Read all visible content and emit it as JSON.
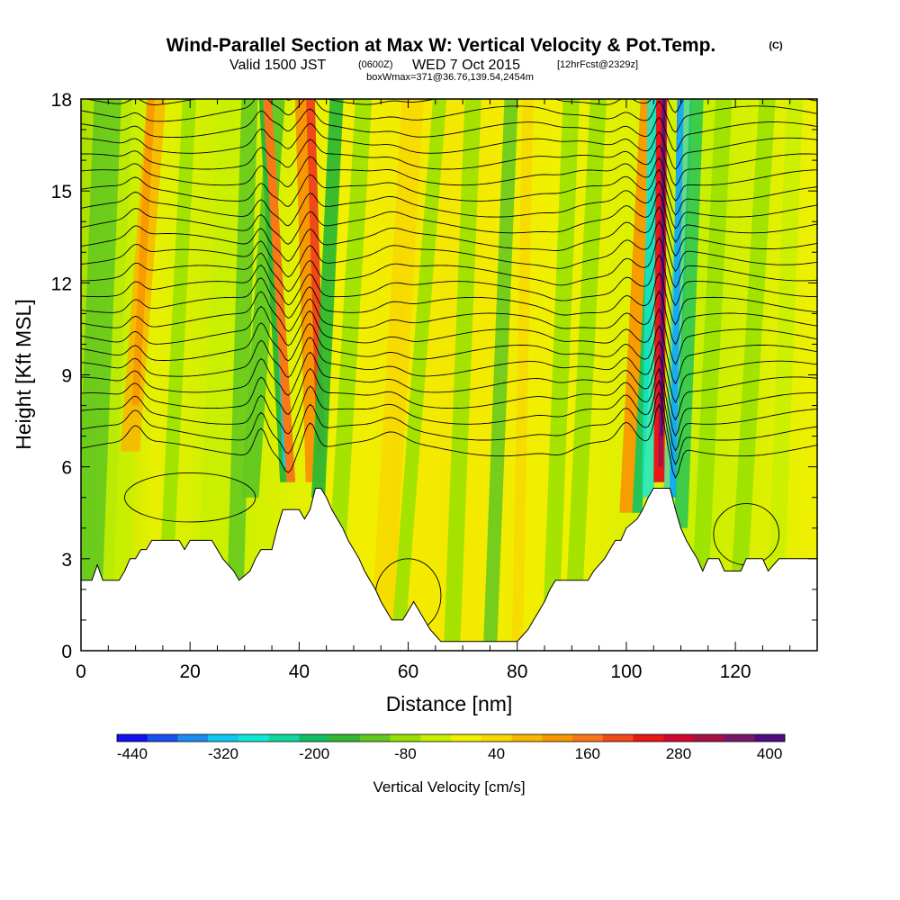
{
  "header": {
    "title": "Wind-Parallel Section at Max W: Vertical Velocity & Pot.Temp.",
    "copyright": "(C)",
    "valid_prefix": "Valid 1500 JST",
    "valid_utc": "(0600Z)",
    "valid_date": "WED 7 Oct 2015",
    "forecast": "[12hrFcst@2329z]",
    "boxwmax": "boxWmax=371@36.76,139.54,2454m"
  },
  "chart_data": {
    "type": "heatmap",
    "title": "Wind-Parallel Section at Max W: Vertical Velocity & Pot.Temp.",
    "xlabel": "Distance [nm]",
    "ylabel": "Height [Kft MSL]",
    "xlim": [
      0,
      135
    ],
    "ylim": [
      0,
      18
    ],
    "xticks": [
      "0",
      "20",
      "40",
      "60",
      "80",
      "100",
      "120"
    ],
    "yticks": [
      "0",
      "3",
      "6",
      "9",
      "12",
      "15",
      "18"
    ],
    "xtick_values": [
      0,
      20,
      40,
      60,
      80,
      100,
      120
    ],
    "ytick_values": [
      0,
      3,
      6,
      9,
      12,
      15,
      18
    ],
    "terrain": [
      [
        0,
        2.3
      ],
      [
        2,
        2.3
      ],
      [
        3,
        2.8
      ],
      [
        4,
        2.3
      ],
      [
        7,
        2.3
      ],
      [
        8,
        2.6
      ],
      [
        9,
        3.0
      ],
      [
        10,
        3.0
      ],
      [
        11,
        3.3
      ],
      [
        12,
        3.3
      ],
      [
        13,
        3.6
      ],
      [
        18,
        3.6
      ],
      [
        19,
        3.3
      ],
      [
        20,
        3.6
      ],
      [
        24,
        3.6
      ],
      [
        25,
        3.3
      ],
      [
        26,
        3.0
      ],
      [
        28,
        2.6
      ],
      [
        29,
        2.3
      ],
      [
        31,
        2.6
      ],
      [
        32,
        3.0
      ],
      [
        33,
        3.3
      ],
      [
        35,
        3.3
      ],
      [
        36,
        4.0
      ],
      [
        37,
        4.6
      ],
      [
        40,
        4.6
      ],
      [
        41,
        4.3
      ],
      [
        42,
        4.6
      ],
      [
        43,
        5.3
      ],
      [
        44,
        5.3
      ],
      [
        45,
        5.0
      ],
      [
        46,
        4.6
      ],
      [
        47,
        4.3
      ],
      [
        48,
        4.0
      ],
      [
        49,
        3.6
      ],
      [
        50,
        3.3
      ],
      [
        51,
        3.0
      ],
      [
        52,
        2.6
      ],
      [
        53,
        2.3
      ],
      [
        54,
        2.0
      ],
      [
        55,
        1.6
      ],
      [
        56,
        1.3
      ],
      [
        57,
        1.0
      ],
      [
        59,
        1.0
      ],
      [
        60,
        1.3
      ],
      [
        61,
        1.6
      ],
      [
        62,
        1.3
      ],
      [
        63,
        1.0
      ],
      [
        64,
        0.7
      ],
      [
        65,
        0.5
      ],
      [
        66,
        0.3
      ],
      [
        80,
        0.3
      ],
      [
        81,
        0.5
      ],
      [
        82,
        0.7
      ],
      [
        83,
        1.0
      ],
      [
        84,
        1.3
      ],
      [
        85,
        1.6
      ],
      [
        86,
        2.0
      ],
      [
        87,
        2.3
      ],
      [
        93,
        2.3
      ],
      [
        94,
        2.6
      ],
      [
        96,
        3.0
      ],
      [
        97,
        3.3
      ],
      [
        98,
        3.6
      ],
      [
        99,
        3.6
      ],
      [
        100,
        4.0
      ],
      [
        102,
        4.3
      ],
      [
        103,
        4.6
      ],
      [
        104,
        5.0
      ],
      [
        105,
        5.3
      ],
      [
        108,
        5.3
      ],
      [
        109,
        4.6
      ],
      [
        110,
        4.0
      ],
      [
        111,
        3.6
      ],
      [
        112,
        3.3
      ],
      [
        113,
        3.0
      ],
      [
        114,
        2.6
      ],
      [
        115,
        3.0
      ],
      [
        117,
        3.0
      ],
      [
        118,
        2.6
      ],
      [
        121,
        2.6
      ],
      [
        122,
        3.0
      ],
      [
        125,
        3.0
      ],
      [
        126,
        2.6
      ],
      [
        128,
        3.0
      ],
      [
        135,
        3.0
      ]
    ],
    "colorbar": {
      "title": "Vertical Velocity [cm/s]",
      "labels": [
        "-440",
        "-320",
        "-200",
        "-80",
        "40",
        "160",
        "280",
        "400"
      ],
      "min": -480,
      "max": 480,
      "colors": [
        "#1010f0",
        "#1850f0",
        "#1c8cf0",
        "#10c8f0",
        "#10e8d8",
        "#10d8a0",
        "#10c060",
        "#30b830",
        "#60c820",
        "#98e000",
        "#c8f000",
        "#f0f000",
        "#f8d800",
        "#f8b800",
        "#f89800",
        "#f87818",
        "#f04818",
        "#e81818",
        "#d00830",
        "#a81048",
        "#781868",
        "#500c80"
      ]
    },
    "features": {
      "max_updraft_x": 106.5,
      "updraft_bands_x": [
        10,
        34,
        41,
        105.5,
        107
      ],
      "downdraft_bands_x": [
        37.5,
        109.5
      ]
    }
  }
}
